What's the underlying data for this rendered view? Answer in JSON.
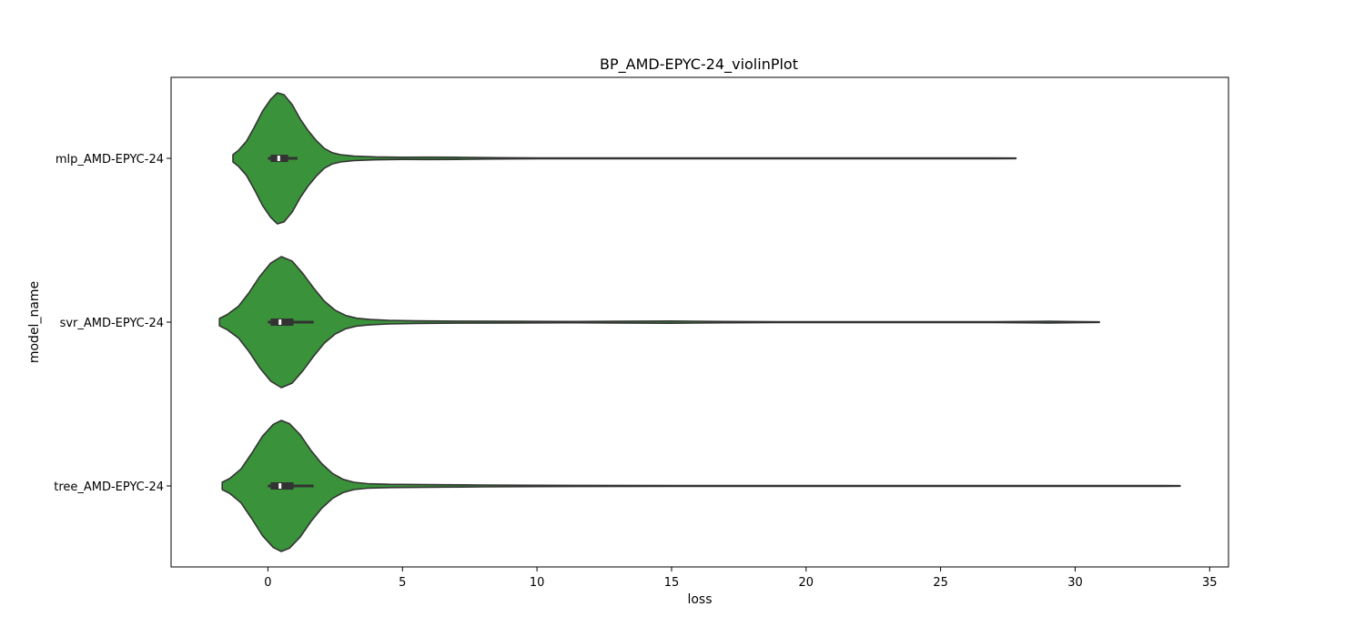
{
  "chart_data": {
    "type": "violin",
    "orientation": "horizontal",
    "title": "BP_AMD-EPYC-24_violinPlot",
    "xlabel": "loss",
    "ylabel": "model_name",
    "xlim": [
      -3.6,
      35.7
    ],
    "xticks": [
      0,
      5,
      10,
      15,
      20,
      25,
      30,
      35
    ],
    "categories": [
      "mlp_AMD-EPYC-24",
      "svr_AMD-EPYC-24",
      "tree_AMD-EPYC-24"
    ],
    "violin_color": "#3a923a",
    "edge_color": "#333333",
    "grid": false,
    "legend": "none",
    "violins": [
      {
        "category": "mlp_AMD-EPYC-24",
        "min": -1.3,
        "max": 27.8,
        "q1": 0.1,
        "median": 0.4,
        "q3": 0.75,
        "whisker_low": 0.0,
        "whisker_high": 1.1,
        "density_profile": [
          [
            -1.3,
            0.055
          ],
          [
            -1.1,
            0.12
          ],
          [
            -0.8,
            0.26
          ],
          [
            -0.5,
            0.48
          ],
          [
            -0.2,
            0.72
          ],
          [
            0.1,
            0.9
          ],
          [
            0.35,
            1.0
          ],
          [
            0.6,
            0.97
          ],
          [
            0.9,
            0.82
          ],
          [
            1.2,
            0.6
          ],
          [
            1.5,
            0.42
          ],
          [
            1.8,
            0.27
          ],
          [
            2.1,
            0.15
          ],
          [
            2.4,
            0.085
          ],
          [
            2.7,
            0.055
          ],
          [
            3.2,
            0.035
          ],
          [
            4.0,
            0.022
          ],
          [
            5.0,
            0.017
          ],
          [
            6.0,
            0.018
          ],
          [
            7.0,
            0.016
          ],
          [
            8.5,
            0.01
          ],
          [
            10.0,
            0.006
          ],
          [
            12.0,
            0.005
          ],
          [
            15.0,
            0.005
          ],
          [
            18.0,
            0.005
          ],
          [
            21.0,
            0.005
          ],
          [
            24.0,
            0.005
          ],
          [
            26.0,
            0.005
          ],
          [
            27.0,
            0.005
          ],
          [
            27.8,
            0.004
          ]
        ]
      },
      {
        "category": "svr_AMD-EPYC-24",
        "min": -1.8,
        "max": 30.9,
        "q1": 0.1,
        "median": 0.45,
        "q3": 0.95,
        "whisker_low": 0.0,
        "whisker_high": 1.7,
        "density_profile": [
          [
            -1.8,
            0.055
          ],
          [
            -1.5,
            0.12
          ],
          [
            -1.1,
            0.24
          ],
          [
            -0.7,
            0.45
          ],
          [
            -0.3,
            0.7
          ],
          [
            0.1,
            0.9
          ],
          [
            0.5,
            1.0
          ],
          [
            0.9,
            0.93
          ],
          [
            1.3,
            0.74
          ],
          [
            1.7,
            0.52
          ],
          [
            2.1,
            0.32
          ],
          [
            2.5,
            0.18
          ],
          [
            2.9,
            0.1
          ],
          [
            3.3,
            0.06
          ],
          [
            3.8,
            0.04
          ],
          [
            4.5,
            0.028
          ],
          [
            5.5,
            0.02
          ],
          [
            7.0,
            0.015
          ],
          [
            9.0,
            0.012
          ],
          [
            11.0,
            0.01
          ],
          [
            13.0,
            0.012
          ],
          [
            15.0,
            0.016
          ],
          [
            17.0,
            0.01
          ],
          [
            19.0,
            0.006
          ],
          [
            22.0,
            0.005
          ],
          [
            25.0,
            0.005
          ],
          [
            27.0,
            0.007
          ],
          [
            29.0,
            0.013
          ],
          [
            30.0,
            0.008
          ],
          [
            30.9,
            0.004
          ]
        ]
      },
      {
        "category": "tree_AMD-EPYC-24",
        "min": -1.7,
        "max": 33.9,
        "q1": 0.1,
        "median": 0.45,
        "q3": 0.95,
        "whisker_low": 0.0,
        "whisker_high": 1.7,
        "density_profile": [
          [
            -1.7,
            0.055
          ],
          [
            -1.4,
            0.12
          ],
          [
            -1.0,
            0.26
          ],
          [
            -0.6,
            0.5
          ],
          [
            -0.2,
            0.76
          ],
          [
            0.2,
            0.94
          ],
          [
            0.5,
            1.0
          ],
          [
            0.8,
            0.95
          ],
          [
            1.2,
            0.78
          ],
          [
            1.6,
            0.54
          ],
          [
            2.0,
            0.34
          ],
          [
            2.4,
            0.19
          ],
          [
            2.8,
            0.1
          ],
          [
            3.2,
            0.055
          ],
          [
            3.7,
            0.035
          ],
          [
            4.5,
            0.025
          ],
          [
            5.5,
            0.022
          ],
          [
            6.5,
            0.018
          ],
          [
            8.0,
            0.014
          ],
          [
            10.0,
            0.01
          ],
          [
            12.0,
            0.008
          ],
          [
            15.0,
            0.007
          ],
          [
            18.0,
            0.006
          ],
          [
            21.0,
            0.006
          ],
          [
            24.0,
            0.006
          ],
          [
            27.0,
            0.006
          ],
          [
            30.0,
            0.006
          ],
          [
            32.0,
            0.006
          ],
          [
            33.3,
            0.006
          ],
          [
            33.9,
            0.004
          ]
        ]
      }
    ]
  }
}
